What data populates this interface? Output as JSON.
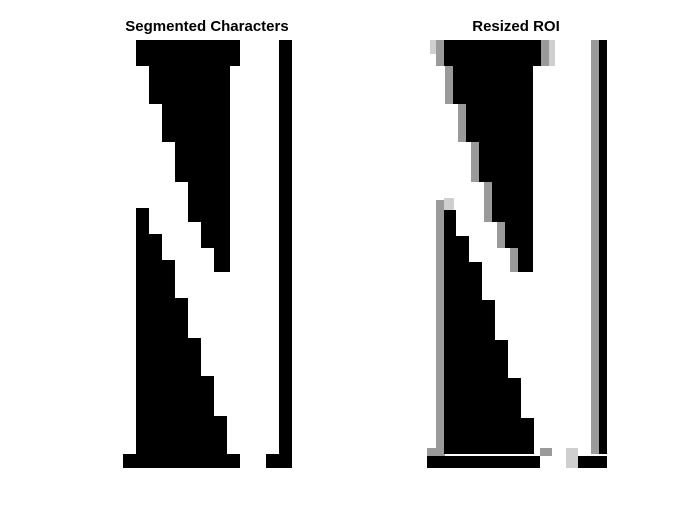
{
  "figure": {
    "left_title": "Segmented Characters",
    "right_title": "Resized ROI"
  },
  "colors": {
    "background": "#ffffff",
    "ink": "#000000",
    "edge_gray": "#888888",
    "edge_light": "#cccccc"
  }
}
